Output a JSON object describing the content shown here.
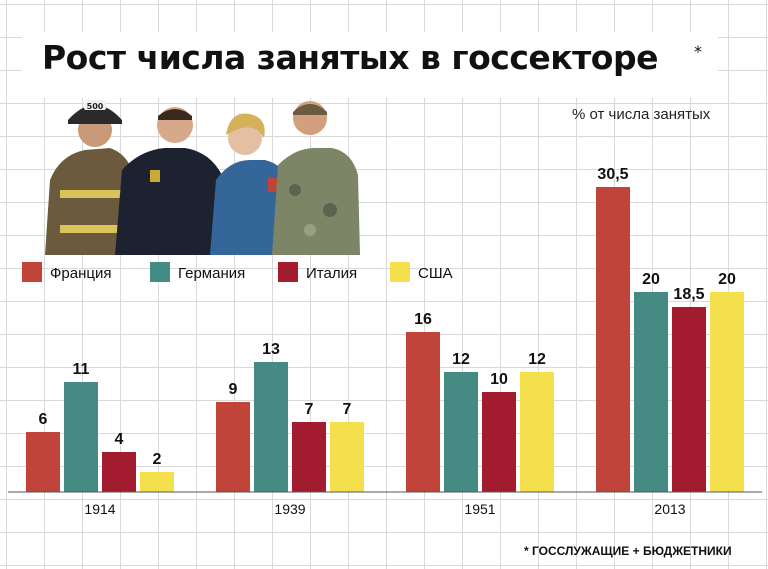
{
  "header": {
    "title": "Рост числа занятых в госсекторе",
    "title_mark": "*",
    "unit": "% от числа занятых",
    "footnote": "* ГОССЛУЖАЩИЕ + БЮДЖЕТНИКИ"
  },
  "photo": {
    "description_icon": "public-servants-photo",
    "badge_text": "500"
  },
  "chart_data": {
    "type": "bar",
    "unit": "% от числа занятых",
    "categories": [
      "1914",
      "1939",
      "1951",
      "2013"
    ],
    "series": [
      {
        "name": "Франция",
        "color": "#c0443a",
        "values": [
          6,
          9,
          16,
          30.5
        ],
        "labels": [
          "6",
          "9",
          "16",
          "30,5"
        ]
      },
      {
        "name": "Германия",
        "color": "#458b83",
        "values": [
          11,
          13,
          12,
          20
        ],
        "labels": [
          "11",
          "13",
          "12",
          "20"
        ]
      },
      {
        "name": "Италия",
        "color": "#a31b2e",
        "values": [
          4,
          7,
          10,
          18.5
        ],
        "labels": [
          "4",
          "7",
          "10",
          "18,5"
        ]
      },
      {
        "name": "США",
        "color": "#f4e04d",
        "values": [
          2,
          7,
          12,
          20
        ],
        "labels": [
          "2",
          "7",
          "12",
          "20"
        ]
      }
    ],
    "ylim": [
      0,
      31
    ],
    "legend_position": "top-left",
    "grid": true
  }
}
